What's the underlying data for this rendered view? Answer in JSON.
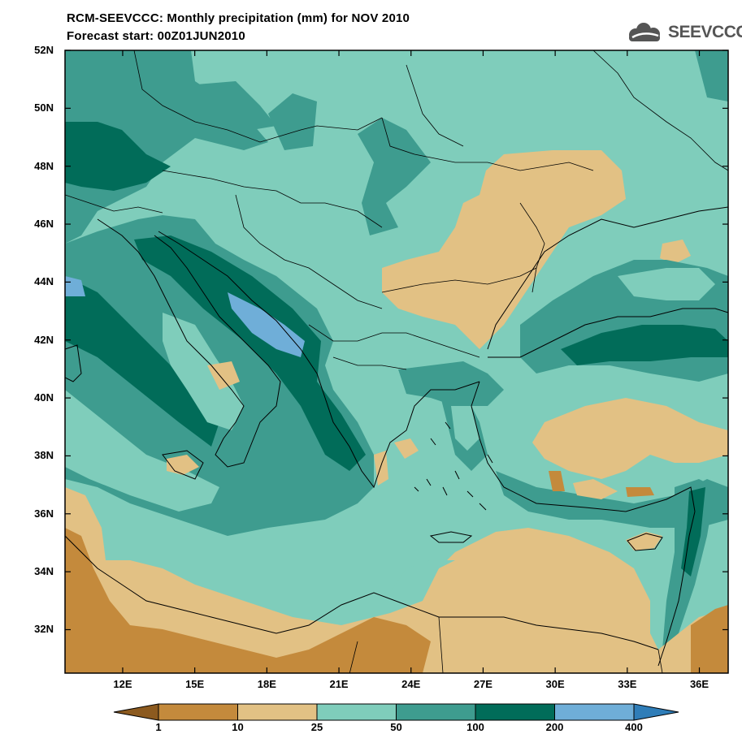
{
  "header": {
    "title_line1": "RCM-SEEVCCC: Monthly precipitation (mm) for NOV 2010",
    "title_line2": "Forecast start: 00Z01JUN2010",
    "logo_text": "SEEVCCC",
    "logo_icon": "cloud-logo-icon"
  },
  "map": {
    "lat_labels": [
      "52N",
      "50N",
      "48N",
      "46N",
      "44N",
      "42N",
      "40N",
      "38N",
      "36N",
      "34N",
      "32N"
    ],
    "lon_labels": [
      "12E",
      "15E",
      "18E",
      "21E",
      "24E",
      "27E",
      "30E",
      "33E",
      "36E"
    ],
    "lat_range": [
      30.5,
      52
    ],
    "lon_range": [
      9.6,
      37.2
    ]
  },
  "colorbar": {
    "thresholds": [
      "1",
      "10",
      "25",
      "50",
      "100",
      "200",
      "400"
    ],
    "colors": [
      "#8c5a1f",
      "#c48a3c",
      "#e2c184",
      "#7fcdbb",
      "#3e9c8f",
      "#016c59",
      "#6faed8",
      "#2f7db8"
    ]
  }
}
